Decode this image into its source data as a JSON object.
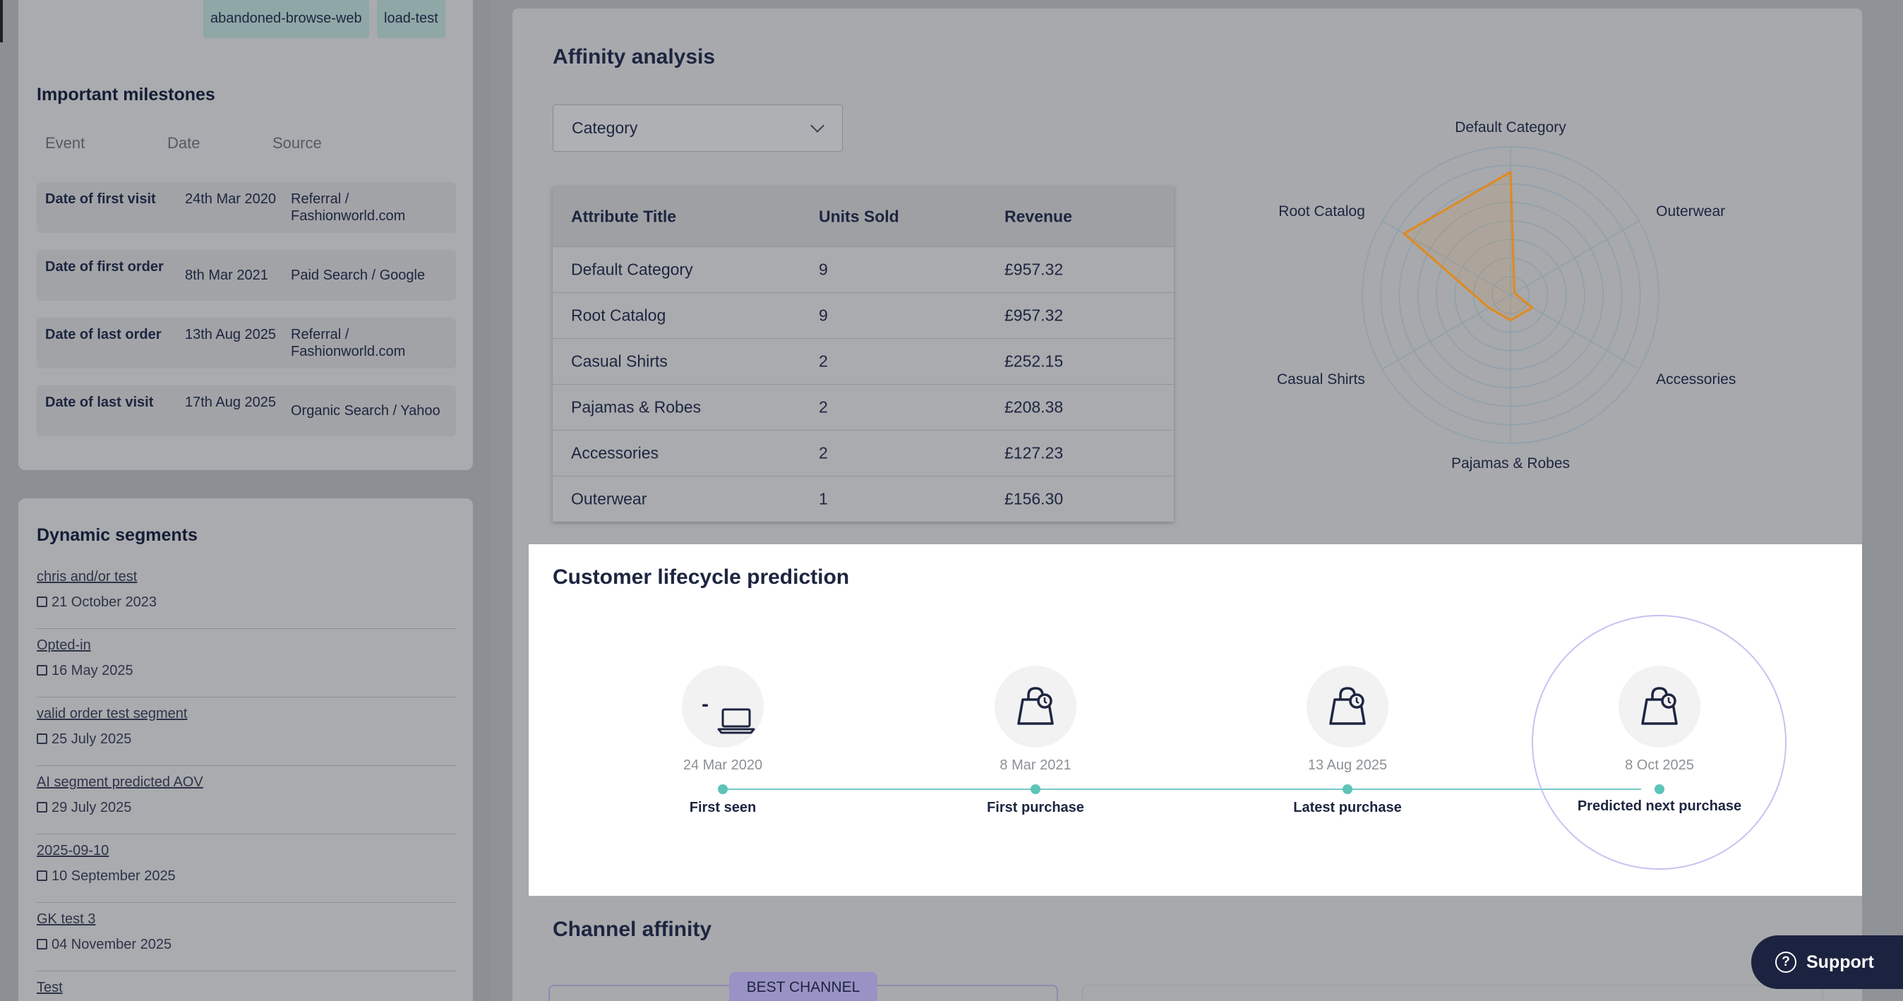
{
  "sidebar": {
    "tags": [
      "abandoned-browse-web",
      "load-test"
    ],
    "milestones": {
      "title": "Important milestones",
      "headers": [
        "Event",
        "Date",
        "Source"
      ],
      "rows": [
        {
          "event": "Date of first visit",
          "date": "24th Mar 2020",
          "source": "Referral / Fashionworld.com"
        },
        {
          "event": "Date of first order",
          "date": "8th Mar 2021",
          "source": "Paid Search / Google"
        },
        {
          "event": "Date of last order",
          "date": "13th Aug 2025",
          "source": "Referral / Fashionworld.com"
        },
        {
          "event": "Date of last visit",
          "date": "17th Aug 2025",
          "source": "Organic Search / Yahoo"
        }
      ]
    },
    "segments": {
      "title": "Dynamic segments",
      "items": [
        {
          "name": "chris and/or test",
          "date": "21 October 2023"
        },
        {
          "name": "Opted-in",
          "date": "16 May 2025"
        },
        {
          "name": "valid order test segment",
          "date": "25 July 2025"
        },
        {
          "name": "AI segment predicted AOV",
          "date": "29 July 2025"
        },
        {
          "name": "2025-09-10",
          "date": "10 September 2025"
        },
        {
          "name": "GK test 3",
          "date": "04 November 2025"
        },
        {
          "name": "Test",
          "date": ""
        }
      ]
    }
  },
  "affinity": {
    "title": "Affinity analysis",
    "dropdown_value": "Category",
    "table": {
      "headers": [
        "Attribute Title",
        "Units Sold",
        "Revenue"
      ],
      "rows": [
        {
          "attr": "Default Category",
          "units": "9",
          "revenue": "£957.32"
        },
        {
          "attr": "Root Catalog",
          "units": "9",
          "revenue": "£957.32"
        },
        {
          "attr": "Casual Shirts",
          "units": "2",
          "revenue": "£252.15"
        },
        {
          "attr": "Pajamas & Robes",
          "units": "2",
          "revenue": "£208.38"
        },
        {
          "attr": "Accessories",
          "units": "2",
          "revenue": "£127.23"
        },
        {
          "attr": "Outerwear",
          "units": "1",
          "revenue": "£156.30"
        }
      ]
    },
    "radar": {
      "axes": [
        "Default Category",
        "Outerwear",
        "Accessories",
        "Pajamas & Robes",
        "Casual Shirts",
        "Root Catalog"
      ],
      "values": [
        0.83,
        0.03,
        0.17,
        0.17,
        0.17,
        0.83
      ],
      "rings": 8,
      "color": "#e08a1e"
    }
  },
  "lifecycle": {
    "title": "Customer lifecycle prediction",
    "stages": [
      {
        "date": "24 Mar 2020",
        "label": "First seen",
        "icon": "laptop-icon",
        "prefix": "-"
      },
      {
        "date": "8 Mar 2021",
        "label": "First purchase",
        "icon": "shopping-bag-clock-icon"
      },
      {
        "date": "13 Aug 2025",
        "label": "Latest purchase",
        "icon": "shopping-bag-clock-icon"
      },
      {
        "date": "8 Oct 2025",
        "label": "Predicted next purchase",
        "icon": "shopping-bag-clock-icon"
      }
    ]
  },
  "channel": {
    "title": "Channel affinity",
    "best_badge": "BEST CHANNEL"
  },
  "support": {
    "label": "Support"
  }
}
